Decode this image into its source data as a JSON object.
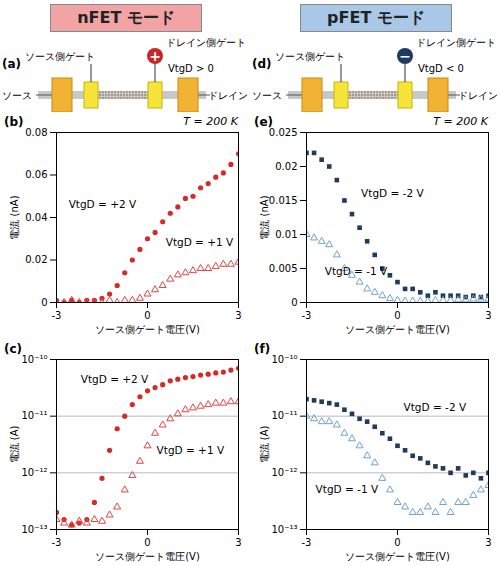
{
  "headers": [
    {
      "text": "nFET モード",
      "color": "#f2a4a4"
    },
    {
      "text": "pFET モード",
      "color": "#a9c8e8"
    }
  ],
  "diagrams": [
    {
      "label": "(a)",
      "source_gate": "ソース側ゲート",
      "drain_gate": "ドレイン側ゲート",
      "bias": "VtgD > 0",
      "source": "ソース",
      "drain": "ドレイン",
      "sign": "+",
      "color": "#c62828"
    },
    {
      "label": "(d)",
      "source_gate": "ソース側ゲート",
      "drain_gate": "ドレイン側ゲート",
      "bias": "VtgD < 0",
      "source": "ソース",
      "drain": "ドレイン",
      "sign": "−",
      "color": "#1f3a5f"
    }
  ],
  "chart_data": [
    {
      "type": "scatter",
      "title": "(b)",
      "note": "T = 200 K",
      "xlabel": "ソース側ゲート電圧(V)",
      "ylabel": "電流 (nA)",
      "x": [
        -3,
        -2.75,
        -2.5,
        -2.25,
        -2,
        -1.75,
        -1.5,
        -1.25,
        -1,
        -0.75,
        -0.5,
        -0.25,
        0,
        0.25,
        0.5,
        0.75,
        1,
        1.25,
        1.5,
        1.75,
        2,
        2.25,
        2.5,
        2.75,
        3
      ],
      "xlim": [
        -3,
        3
      ],
      "xticks": [
        -3,
        0,
        3
      ],
      "ylim": [
        0,
        0.08
      ],
      "yticks": [
        0,
        0.02,
        0.04,
        0.06,
        0.08
      ],
      "grid": false,
      "series": [
        {
          "name": "VtgD = +2 V",
          "color": "#d42a2a",
          "marker": "circle",
          "values": [
            0.001,
            0,
            0.001,
            0,
            0.001,
            0.001,
            0.002,
            0.004,
            0.008,
            0.014,
            0.02,
            0.025,
            0.03,
            0.033,
            0.038,
            0.042,
            0.045,
            0.049,
            0.05,
            0.054,
            0.056,
            0.059,
            0.061,
            0.065,
            0.07
          ]
        },
        {
          "name": "VtgD = +1 V",
          "color": "#e04545",
          "marker": "triangle-open",
          "values": [
            0,
            0,
            0.001,
            0,
            0,
            0,
            0,
            0.001,
            0,
            0.001,
            0.001,
            0.002,
            0.004,
            0.006,
            0.008,
            0.011,
            0.013,
            0.014,
            0.015,
            0.016,
            0.016,
            0.017,
            0.018,
            0.018,
            0.019
          ]
        }
      ],
      "annotations": [
        {
          "text": "VtgD = +2 V",
          "x": -2.6,
          "y": 0.046
        },
        {
          "text": "VtgD = +1 V",
          "x": 0.6,
          "y": 0.028
        }
      ]
    },
    {
      "type": "scatter",
      "title": "(e)",
      "note": "T = 200 K",
      "xlabel": "ソース側ゲート電圧(V)",
      "ylabel": "電流 (nA)",
      "x": [
        -3,
        -2.75,
        -2.5,
        -2.25,
        -2,
        -1.75,
        -1.5,
        -1.25,
        -1,
        -0.75,
        -0.5,
        -0.25,
        0,
        0.25,
        0.5,
        0.75,
        1,
        1.25,
        1.5,
        1.75,
        2,
        2.25,
        2.5,
        2.75,
        3
      ],
      "xlim": [
        -3,
        3
      ],
      "xticks": [
        -3,
        0,
        3
      ],
      "ylim": [
        0,
        0.025
      ],
      "yticks": [
        0,
        0.005,
        0.01,
        0.015,
        0.02,
        0.025
      ],
      "grid": false,
      "series": [
        {
          "name": "VtgD = -2 V",
          "color": "#1f3a5f",
          "marker": "square",
          "values": [
            0.022,
            0.022,
            0.021,
            0.02,
            0.018,
            0.015,
            0.013,
            0.011,
            0.009,
            0.007,
            0.005,
            0.004,
            0.003,
            0.002,
            0.002,
            0.0015,
            0.001,
            0.0015,
            0.001,
            0.001,
            0.001,
            0.0008,
            0.001,
            0.0008,
            0.001
          ]
        },
        {
          "name": "VtgD = -1 V",
          "color": "#6fa3d0",
          "marker": "triangle-open",
          "values": [
            0.01,
            0.0095,
            0.009,
            0.0085,
            0.007,
            0.005,
            0.004,
            0.003,
            0.002,
            0.0015,
            0.001,
            0.0006,
            0.0003,
            0.0002,
            0.0002,
            0.0002,
            0.0002,
            0.0003,
            0.0003,
            0.0003,
            0.0004,
            0.0004,
            0.0005,
            0.0005,
            0.0005
          ]
        }
      ],
      "annotations": [
        {
          "text": "VtgD = -2 V",
          "x": -1.2,
          "y": 0.016
        },
        {
          "text": "VtgD = -1 V",
          "x": -2.4,
          "y": 0.0045
        }
      ]
    },
    {
      "type": "scatter",
      "title": "(c)",
      "xlabel": "ソース側ゲート電圧(V)",
      "ylabel": "電流 (A)",
      "log": "y",
      "x": [
        -3,
        -2.75,
        -2.5,
        -2.25,
        -2,
        -1.75,
        -1.5,
        -1.25,
        -1,
        -0.75,
        -0.5,
        -0.25,
        0,
        0.25,
        0.5,
        0.75,
        1,
        1.25,
        1.5,
        1.75,
        2,
        2.25,
        2.5,
        2.75,
        3
      ],
      "xlim": [
        -3,
        3
      ],
      "xticks": [
        -3,
        0,
        3
      ],
      "ylim": [
        1e-13,
        1e-10
      ],
      "yticks": [
        {
          "value": 1e-13,
          "label": "10⁻¹³"
        },
        {
          "value": 1e-12,
          "label": "10⁻¹²"
        },
        {
          "value": 1e-11,
          "label": "10⁻¹¹"
        },
        {
          "value": 1e-10,
          "label": "10⁻¹⁰"
        }
      ],
      "grid": true,
      "series": [
        {
          "name": "VtgD = +2 V",
          "color": "#d42a2a",
          "marker": "circle",
          "values": [
            2e-13,
            1.5e-13,
            1.2e-13,
            1.3e-13,
            1.5e-13,
            3e-13,
            8e-13,
            2.5e-12,
            6e-12,
            1e-11,
            1.6e-11,
            2.2e-11,
            2.8e-11,
            3.2e-11,
            3.6e-11,
            4.2e-11,
            4.5e-11,
            4.8e-11,
            5e-11,
            5.3e-11,
            5.5e-11,
            5.8e-11,
            6e-11,
            6.5e-11,
            7e-11
          ]
        },
        {
          "name": "VtgD = +1 V",
          "color": "#e04545",
          "marker": "triangle-open",
          "values": [
            1.5e-13,
            1.3e-13,
            1.2e-13,
            1.4e-13,
            1.3e-13,
            1.5e-13,
            1.4e-13,
            1.8e-13,
            2.5e-13,
            5e-13,
            9e-13,
            1.6e-12,
            3e-12,
            5e-12,
            7e-12,
            9e-12,
            1.1e-11,
            1.3e-11,
            1.4e-11,
            1.5e-11,
            1.6e-11,
            1.7e-11,
            1.7e-11,
            1.8e-11,
            1.8e-11
          ]
        }
      ],
      "annotations": [
        {
          "text": "VtgD = +2 V",
          "x": -2.2,
          "y": 4.5e-11
        },
        {
          "text": "VtgD = +1 V",
          "x": 0.3,
          "y": 2.5e-12
        }
      ]
    },
    {
      "type": "scatter",
      "title": "(f)",
      "xlabel": "ソース側ゲート電圧(V)",
      "ylabel": "電流 (A)",
      "log": "y",
      "x": [
        -3,
        -2.75,
        -2.5,
        -2.25,
        -2,
        -1.75,
        -1.5,
        -1.25,
        -1,
        -0.75,
        -0.5,
        -0.25,
        0,
        0.25,
        0.5,
        0.75,
        1,
        1.25,
        1.5,
        1.75,
        2,
        2.25,
        2.5,
        2.75,
        3
      ],
      "xlim": [
        -3,
        3
      ],
      "xticks": [
        -3,
        0,
        3
      ],
      "ylim": [
        1e-13,
        1e-10
      ],
      "yticks": [
        {
          "value": 1e-13,
          "label": "10⁻¹³"
        },
        {
          "value": 1e-12,
          "label": "10⁻¹²"
        },
        {
          "value": 1e-11,
          "label": "10⁻¹¹"
        },
        {
          "value": 1e-10,
          "label": "10⁻¹⁰"
        }
      ],
      "grid": true,
      "series": [
        {
          "name": "VtgD = -2 V",
          "color": "#1f3a5f",
          "marker": "square",
          "values": [
            2e-11,
            1.9e-11,
            1.8e-11,
            1.7e-11,
            1.6e-11,
            1.3e-11,
            1.1e-11,
            9e-12,
            8e-12,
            6.5e-12,
            5e-12,
            4e-12,
            3e-12,
            2.5e-12,
            2e-12,
            1.8e-12,
            1.5e-12,
            1.3e-12,
            1.2e-12,
            1e-12,
            1.2e-12,
            9e-13,
            1e-12,
            8e-13,
            1e-12
          ]
        },
        {
          "name": "VtgD = -1 V",
          "color": "#6fa3d0",
          "marker": "triangle-open",
          "values": [
            1e-11,
            9e-12,
            8e-12,
            8e-12,
            7e-12,
            5e-12,
            4e-12,
            3e-12,
            2e-12,
            1.5e-12,
            8e-13,
            5e-13,
            3e-13,
            2.5e-13,
            2e-13,
            2e-13,
            2.5e-13,
            2e-13,
            3e-13,
            2e-13,
            3e-13,
            3e-13,
            4e-13,
            5e-13,
            6e-13
          ]
        }
      ],
      "annotations": [
        {
          "text": "VtgD = -2 V",
          "x": 0.2,
          "y": 1.4e-11
        },
        {
          "text": "VtgD = -1 V",
          "x": -2.7,
          "y": 5e-13
        }
      ]
    }
  ]
}
